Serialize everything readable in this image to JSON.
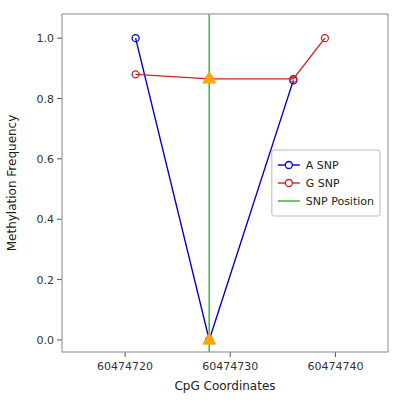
{
  "chart_data": {
    "type": "line",
    "xlabel": "CpG Coordinates",
    "ylabel": "Methylation Frequency",
    "series": [
      {
        "name": "A SNP",
        "type": "line",
        "marker": "circle",
        "color": "#0000cc",
        "x": [
          60474721,
          60474728,
          60474736
        ],
        "values": [
          1.0,
          0.0,
          0.86
        ]
      },
      {
        "name": "G SNP",
        "type": "line",
        "marker": "circle",
        "color": "#cc2222",
        "x": [
          60474721,
          60474728,
          60474736,
          60474739
        ],
        "values": [
          0.88,
          0.865,
          0.865,
          1.0
        ]
      },
      {
        "name": "SNP Position",
        "type": "vline",
        "color": "#44bb44",
        "x": 60474728
      },
      {
        "type": "scatter",
        "marker": "triangle",
        "color": "#ffa500",
        "x": [
          60474728,
          60474728
        ],
        "values": [
          0.865,
          0.0
        ]
      }
    ],
    "xlim": [
      60474714,
      60474745
    ],
    "ylim": [
      -0.04,
      1.08
    ],
    "xticks": [
      60474720,
      60474730,
      60474740
    ],
    "yticks": [
      {
        "value": 0.0,
        "label": "0.0"
      },
      0.2,
      0.4,
      0.6,
      0.8,
      {
        "value": 1.0,
        "label": "1.0"
      }
    ],
    "grid": false,
    "legend": "center right"
  }
}
